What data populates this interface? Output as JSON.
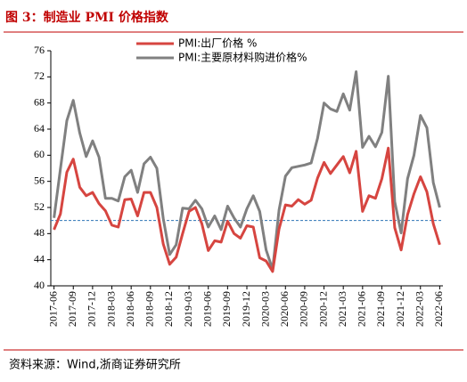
{
  "chart_data": {
    "type": "line",
    "title": "图 3：制造业 PMI 价格指数",
    "source": "资料来源：Wind,浙商证券研究所",
    "categories": [
      "2017-06",
      null,
      null,
      "2017-09",
      null,
      null,
      "2017-12",
      null,
      null,
      "2018-03",
      null,
      null,
      "2018-06",
      null,
      null,
      "2018-09",
      null,
      null,
      "2018-12",
      null,
      null,
      "2019-03",
      null,
      null,
      "2019-06",
      null,
      null,
      "2019-09",
      null,
      null,
      "2019-12",
      null,
      null,
      "2020-03",
      null,
      null,
      "2020-06",
      null,
      null,
      "2020-09",
      null,
      null,
      "2020-12",
      null,
      null,
      "2021-03",
      null,
      null,
      "2021-06",
      null,
      null,
      "2021-09",
      null,
      null,
      "2021-12",
      null,
      null,
      "2022-03",
      null,
      null,
      "2022-06"
    ],
    "series": [
      {
        "name": "PMI:出厂价格 %",
        "color": "#d64540",
        "values": [
          48.6,
          51.0,
          57.4,
          59.4,
          55.1,
          53.8,
          54.3,
          52.6,
          51.5,
          49.3,
          49.0,
          53.2,
          53.3,
          50.7,
          54.3,
          54.3,
          52.0,
          46.4,
          43.3,
          44.4,
          48.0,
          51.4,
          52.0,
          49.5,
          45.4,
          46.9,
          46.7,
          49.9,
          48.0,
          47.3,
          49.2,
          49.0,
          44.3,
          43.8,
          42.2,
          48.7,
          52.4,
          52.2,
          53.2,
          52.5,
          53.1,
          56.5,
          58.9,
          57.2,
          58.5,
          59.8,
          57.3,
          60.6,
          51.4,
          53.8,
          53.4,
          56.4,
          61.1,
          48.9,
          45.5,
          50.9,
          54.1,
          56.7,
          54.4,
          49.5,
          46.3
        ]
      },
      {
        "name": "PMI:主要原材料购进价格%",
        "color": "#808080",
        "values": [
          50.4,
          57.9,
          65.3,
          68.4,
          63.4,
          59.8,
          62.2,
          59.7,
          53.4,
          53.4,
          53.0,
          56.7,
          57.7,
          54.3,
          58.7,
          59.7,
          58.0,
          50.3,
          44.8,
          46.3,
          51.9,
          51.8,
          53.1,
          51.8,
          49.0,
          50.7,
          48.6,
          52.2,
          50.4,
          49.0,
          51.8,
          53.8,
          51.4,
          45.5,
          42.5,
          51.6,
          56.8,
          58.1,
          58.3,
          58.5,
          58.8,
          62.6,
          68.0,
          67.1,
          66.7,
          69.4,
          66.9,
          72.8,
          61.2,
          62.9,
          61.3,
          63.5,
          72.1,
          52.9,
          48.1,
          56.4,
          60.0,
          66.1,
          64.2,
          55.8,
          52.0
        ]
      }
    ],
    "ylim": [
      40,
      76
    ],
    "yticks": [
      40,
      44,
      48,
      52,
      56,
      60,
      64,
      68,
      72,
      76
    ],
    "reference_line": 50,
    "reference_color": "#2e75b6",
    "grid": false,
    "legend": "top"
  }
}
